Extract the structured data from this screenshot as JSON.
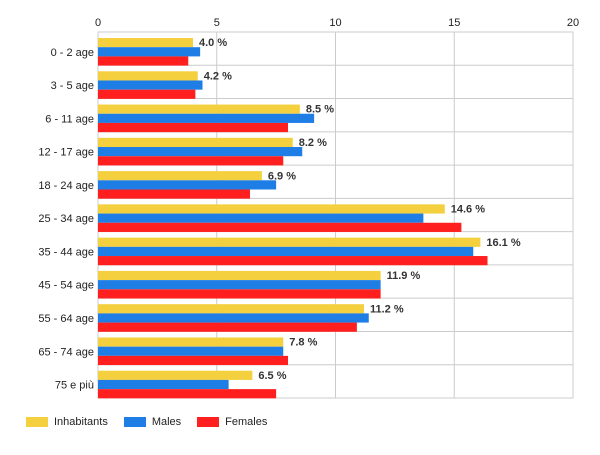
{
  "chart_data": {
    "type": "bar",
    "orientation": "horizontal",
    "categories": [
      "0 - 2 age",
      "3 - 5 age",
      "6 - 11 age",
      "12 - 17 age",
      "18 - 24 age",
      "25 - 34 age",
      "35 - 44 age",
      "45 - 54 age",
      "55 - 64 age",
      "65 - 74 age",
      "75 e più"
    ],
    "series": [
      {
        "name": "Inhabitants",
        "color": "#f4d03f",
        "values": [
          4.0,
          4.2,
          8.5,
          8.2,
          6.9,
          14.6,
          16.1,
          11.9,
          11.2,
          7.8,
          6.5
        ]
      },
      {
        "name": "Males",
        "color": "#1f7de6",
        "values": [
          4.3,
          4.4,
          9.1,
          8.6,
          7.5,
          13.7,
          15.8,
          11.9,
          11.4,
          7.8,
          5.5
        ]
      },
      {
        "name": "Females",
        "color": "#ff1f1f",
        "values": [
          3.8,
          4.1,
          8.0,
          7.8,
          6.4,
          15.3,
          16.4,
          11.9,
          10.9,
          8.0,
          7.5
        ]
      }
    ],
    "data_labels": [
      "4.0 %",
      "4.2 %",
      "8.5 %",
      "8.2 %",
      "6.9 %",
      "14.6 %",
      "16.1 %",
      "11.9 %",
      "11.2 %",
      "7.8 %",
      "6.5 %"
    ],
    "x_ticks": [
      "0",
      "5",
      "10",
      "15",
      "20"
    ],
    "xlim": [
      0,
      20
    ],
    "grid": true,
    "legend_position": "bottom-left",
    "title": "",
    "xlabel": "",
    "ylabel": ""
  }
}
